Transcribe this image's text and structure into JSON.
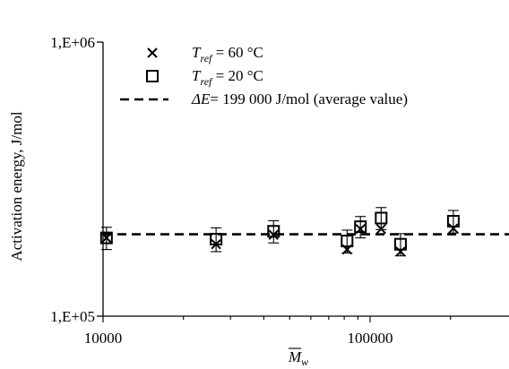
{
  "chart_data": {
    "type": "scatter",
    "x_scale": "log",
    "y_scale": "log",
    "xlim": [
      10000,
      200000
    ],
    "ylim": [
      100000,
      1000000
    ],
    "x_ticks": [
      {
        "value": 10000,
        "label": "10000"
      },
      {
        "value": 100000,
        "label": "100000"
      }
    ],
    "y_ticks": [
      {
        "value": 100000,
        "label": "1,E+05"
      },
      {
        "value": 1000000,
        "label": "1,E+06"
      }
    ],
    "xlabel": {
      "main": "M",
      "sub": "w",
      "overline": true
    },
    "ylabel": "Activation energy, J/mol",
    "grid": false,
    "legend_position": "top-left",
    "legend": [
      {
        "marker": "x",
        "symbol_name": "T",
        "sub": "ref",
        "rest": " = 60 °C"
      },
      {
        "marker": "square",
        "symbol_name": "T",
        "sub": "ref",
        "rest": " = 20 °C"
      },
      {
        "marker": "dashed-line",
        "symbol_name": "ΔE",
        "sub": "",
        "rest": "= 199 000 J/mol (average value)"
      }
    ],
    "series": [
      {
        "marker": "x",
        "points": [
          {
            "x": 10300,
            "y": 193000
          },
          {
            "x": 26500,
            "y": 183000
          },
          {
            "x": 43500,
            "y": 198000
          },
          {
            "x": 82000,
            "y": 175000
          },
          {
            "x": 92000,
            "y": 208000
          },
          {
            "x": 110000,
            "y": 208000
          },
          {
            "x": 130000,
            "y": 172000
          },
          {
            "x": 205000,
            "y": 209000
          }
        ]
      },
      {
        "marker": "square",
        "points": [
          {
            "x": 10300,
            "y": 193000,
            "err": 18000
          },
          {
            "x": 26500,
            "y": 191000,
            "err": 19000
          },
          {
            "x": 43500,
            "y": 204000,
            "err": 19000
          },
          {
            "x": 82000,
            "y": 188000,
            "err": 18000
          },
          {
            "x": 92000,
            "y": 212000,
            "err": 19000
          },
          {
            "x": 110000,
            "y": 228000,
            "err": 21000
          },
          {
            "x": 130000,
            "y": 183000,
            "err": 17000
          },
          {
            "x": 205000,
            "y": 222000,
            "err": 21000
          }
        ]
      }
    ],
    "reference_line": {
      "y": 199000,
      "style": "dashed"
    },
    "colors": {
      "ink": "#000000",
      "background": "#ffffff"
    }
  }
}
